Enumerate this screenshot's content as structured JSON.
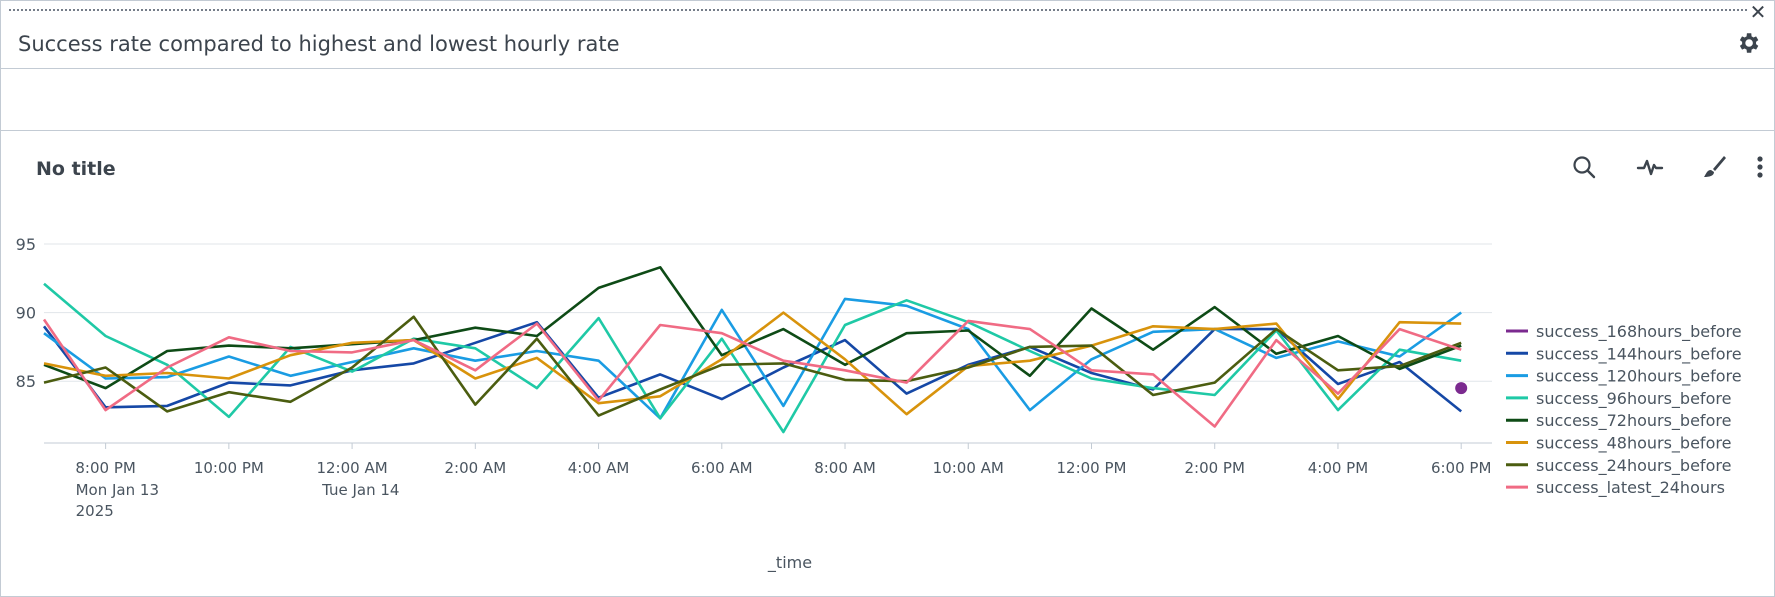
{
  "dashboard_panel": {
    "title": "Success rate compared to highest and lowest hourly rate",
    "close_glyph": "✕",
    "icons": [
      "drag-handle",
      "close-icon",
      "gear-icon"
    ]
  },
  "visualization": {
    "title": "No title",
    "toolbar_icons": [
      "search-icon",
      "pulse-icon",
      "brush-icon",
      "more-vertical-icon"
    ]
  },
  "chart_data": {
    "type": "line",
    "xlabel": "_time",
    "ylabel": "",
    "ylim": [
      80.5,
      95
    ],
    "yticks": [
      85,
      90,
      95
    ],
    "grid": true,
    "legend_placement": "right",
    "x_tick_labels": [
      {
        "label": "8:00 PM",
        "sub": [
          "Mon Jan 13",
          "2025"
        ],
        "x": 1
      },
      {
        "label": "10:00 PM",
        "sub": [],
        "x": 3
      },
      {
        "label": "12:00 AM",
        "sub": [
          "Tue Jan 14"
        ],
        "x": 5
      },
      {
        "label": "2:00 AM",
        "sub": [],
        "x": 7
      },
      {
        "label": "4:00 AM",
        "sub": [],
        "x": 9
      },
      {
        "label": "6:00 AM",
        "sub": [],
        "x": 11
      },
      {
        "label": "8:00 AM",
        "sub": [],
        "x": 13
      },
      {
        "label": "10:00 AM",
        "sub": [],
        "x": 15
      },
      {
        "label": "12:00 PM",
        "sub": [],
        "x": 17
      },
      {
        "label": "2:00 PM",
        "sub": [],
        "x": 19
      },
      {
        "label": "4:00 PM",
        "sub": [],
        "x": 21
      },
      {
        "label": "6:00 PM",
        "sub": [],
        "x": 23
      }
    ],
    "xlim": [
      0,
      23.5
    ],
    "series": [
      {
        "name": "success_168hours_before",
        "color": "#7b2a8f",
        "points": [
          [
            23,
            84.5
          ]
        ]
      },
      {
        "name": "success_144hours_before",
        "color": "#1548a6",
        "points": [
          [
            0,
            89.0
          ],
          [
            1,
            83.1
          ],
          [
            2,
            83.2
          ],
          [
            3,
            84.9
          ],
          [
            4,
            84.7
          ],
          [
            5,
            85.8
          ],
          [
            6,
            86.3
          ],
          [
            7,
            87.8
          ],
          [
            8,
            89.3
          ],
          [
            9,
            83.8
          ],
          [
            10,
            85.5
          ],
          [
            11,
            83.7
          ],
          [
            12,
            86.0
          ],
          [
            13,
            88.0
          ],
          [
            14,
            84.1
          ],
          [
            15,
            86.2
          ],
          [
            16,
            87.5
          ],
          [
            17,
            85.6
          ],
          [
            18,
            84.4
          ],
          [
            19,
            88.8
          ],
          [
            20,
            88.8
          ],
          [
            21,
            84.8
          ],
          [
            22,
            86.4
          ],
          [
            23,
            82.8
          ]
        ]
      },
      {
        "name": "success_120hours_before",
        "color": "#1a9ce3",
        "points": [
          [
            0,
            88.5
          ],
          [
            1,
            85.2
          ],
          [
            2,
            85.3
          ],
          [
            3,
            86.8
          ],
          [
            4,
            85.4
          ],
          [
            5,
            86.4
          ],
          [
            6,
            87.4
          ],
          [
            7,
            86.5
          ],
          [
            8,
            87.2
          ],
          [
            9,
            86.5
          ],
          [
            10,
            82.3
          ],
          [
            11,
            90.2
          ],
          [
            12,
            83.2
          ],
          [
            13,
            91.0
          ],
          [
            14,
            90.5
          ],
          [
            15,
            88.8
          ],
          [
            16,
            82.9
          ],
          [
            17,
            86.6
          ],
          [
            18,
            88.6
          ],
          [
            19,
            88.8
          ],
          [
            20,
            86.7
          ],
          [
            21,
            87.9
          ],
          [
            22,
            86.8
          ],
          [
            23,
            90.0
          ]
        ]
      },
      {
        "name": "success_96hours_before",
        "color": "#1fc9a6",
        "points": [
          [
            0,
            92.1
          ],
          [
            1,
            88.3
          ],
          [
            2,
            86.2
          ],
          [
            3,
            82.4
          ],
          [
            4,
            87.5
          ],
          [
            5,
            85.7
          ],
          [
            6,
            88.1
          ],
          [
            7,
            87.4
          ],
          [
            8,
            84.5
          ],
          [
            9,
            89.6
          ],
          [
            10,
            82.3
          ],
          [
            11,
            88.1
          ],
          [
            12,
            81.3
          ],
          [
            13,
            89.1
          ],
          [
            14,
            90.9
          ],
          [
            15,
            89.3
          ],
          [
            16,
            87.2
          ],
          [
            17,
            85.2
          ],
          [
            18,
            84.5
          ],
          [
            19,
            84.0
          ],
          [
            20,
            88.7
          ],
          [
            21,
            82.9
          ],
          [
            22,
            87.3
          ],
          [
            23,
            86.5
          ]
        ]
      },
      {
        "name": "success_72hours_before",
        "color": "#0e4b16",
        "points": [
          [
            0,
            86.2
          ],
          [
            1,
            84.5
          ],
          [
            2,
            87.2
          ],
          [
            3,
            87.6
          ],
          [
            4,
            87.4
          ],
          [
            5,
            87.7
          ],
          [
            6,
            88.0
          ],
          [
            7,
            88.9
          ],
          [
            8,
            88.3
          ],
          [
            9,
            91.8
          ],
          [
            10,
            93.3
          ],
          [
            11,
            86.9
          ],
          [
            12,
            88.8
          ],
          [
            13,
            86.2
          ],
          [
            14,
            88.5
          ],
          [
            15,
            88.7
          ],
          [
            16,
            85.4
          ],
          [
            17,
            90.3
          ],
          [
            18,
            87.3
          ],
          [
            19,
            90.4
          ],
          [
            20,
            87.0
          ],
          [
            21,
            88.3
          ],
          [
            22,
            85.9
          ],
          [
            23,
            87.6
          ]
        ]
      },
      {
        "name": "success_48hours_before",
        "color": "#d8930c",
        "points": [
          [
            0,
            86.3
          ],
          [
            1,
            85.4
          ],
          [
            2,
            85.6
          ],
          [
            3,
            85.2
          ],
          [
            4,
            86.9
          ],
          [
            5,
            87.8
          ],
          [
            6,
            88.0
          ],
          [
            7,
            85.2
          ],
          [
            8,
            86.7
          ],
          [
            9,
            83.4
          ],
          [
            10,
            83.9
          ],
          [
            11,
            86.6
          ],
          [
            12,
            90.0
          ],
          [
            13,
            86.6
          ],
          [
            14,
            82.6
          ],
          [
            15,
            86.1
          ],
          [
            16,
            86.5
          ],
          [
            17,
            87.6
          ],
          [
            18,
            89.0
          ],
          [
            19,
            88.8
          ],
          [
            20,
            89.2
          ],
          [
            21,
            83.7
          ],
          [
            22,
            89.3
          ],
          [
            23,
            89.2
          ]
        ]
      },
      {
        "name": "success_24hours_before",
        "color": "#4b5d10",
        "points": [
          [
            0,
            84.9
          ],
          [
            1,
            86.0
          ],
          [
            2,
            82.8
          ],
          [
            3,
            84.2
          ],
          [
            4,
            83.5
          ],
          [
            5,
            86.0
          ],
          [
            6,
            89.7
          ],
          [
            7,
            83.3
          ],
          [
            8,
            88.1
          ],
          [
            9,
            82.5
          ],
          [
            10,
            84.4
          ],
          [
            11,
            86.2
          ],
          [
            12,
            86.3
          ],
          [
            13,
            85.1
          ],
          [
            14,
            85.0
          ],
          [
            15,
            86.0
          ],
          [
            16,
            87.5
          ],
          [
            17,
            87.6
          ],
          [
            18,
            84.0
          ],
          [
            19,
            84.9
          ],
          [
            20,
            88.8
          ],
          [
            21,
            85.8
          ],
          [
            22,
            86.1
          ],
          [
            23,
            87.8
          ]
        ]
      },
      {
        "name": "success_latest_24hours",
        "color": "#f06b84",
        "points": [
          [
            0,
            89.5
          ],
          [
            1,
            82.9
          ],
          [
            2,
            86.0
          ],
          [
            3,
            88.2
          ],
          [
            4,
            87.2
          ],
          [
            5,
            87.1
          ],
          [
            6,
            88.0
          ],
          [
            7,
            85.8
          ],
          [
            8,
            89.2
          ],
          [
            9,
            83.6
          ],
          [
            10,
            89.1
          ],
          [
            11,
            88.5
          ],
          [
            12,
            86.5
          ],
          [
            13,
            85.8
          ],
          [
            14,
            84.9
          ],
          [
            15,
            89.4
          ],
          [
            16,
            88.8
          ],
          [
            17,
            85.8
          ],
          [
            18,
            85.5
          ],
          [
            19,
            81.7
          ],
          [
            20,
            88.0
          ],
          [
            21,
            84.1
          ],
          [
            22,
            88.8
          ],
          [
            23,
            87.3
          ]
        ]
      }
    ]
  }
}
